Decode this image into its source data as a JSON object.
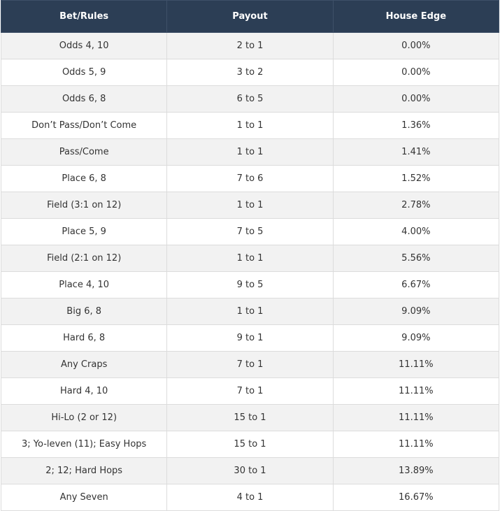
{
  "table": {
    "headers": [
      "Bet/Rules",
      "Payout",
      "House Edge"
    ],
    "rows": [
      [
        "Odds 4, 10",
        "2 to 1",
        "0.00%"
      ],
      [
        "Odds 5, 9",
        "3 to 2",
        "0.00%"
      ],
      [
        "Odds 6, 8",
        "6 to 5",
        "0.00%"
      ],
      [
        "Don’t Pass/Don’t Come",
        "1 to 1",
        "1.36%"
      ],
      [
        "Pass/Come",
        "1 to 1",
        "1.41%"
      ],
      [
        "Place 6, 8",
        "7 to 6",
        "1.52%"
      ],
      [
        "Field (3:1 on 12)",
        "1 to 1",
        "2.78%"
      ],
      [
        "Place 5, 9",
        "7 to 5",
        "4.00%"
      ],
      [
        "Field (2:1 on 12)",
        "1 to 1",
        "5.56%"
      ],
      [
        "Place 4, 10",
        "9 to 5",
        "6.67%"
      ],
      [
        "Big 6, 8",
        "1 to 1",
        "9.09%"
      ],
      [
        "Hard 6, 8",
        "9 to 1",
        "9.09%"
      ],
      [
        "Any Craps",
        "7 to 1",
        "11.11%"
      ],
      [
        "Hard 4, 10",
        "7 to 1",
        "11.11%"
      ],
      [
        "Hi-Lo (2 or 12)",
        "15 to 1",
        "11.11%"
      ],
      [
        "3; Yo-leven (11); Easy Hops",
        "15 to 1",
        "11.11%"
      ],
      [
        "2; 12; Hard Hops",
        "30 to 1",
        "13.89%"
      ],
      [
        "Any Seven",
        "4 to 1",
        "16.67%"
      ]
    ]
  }
}
